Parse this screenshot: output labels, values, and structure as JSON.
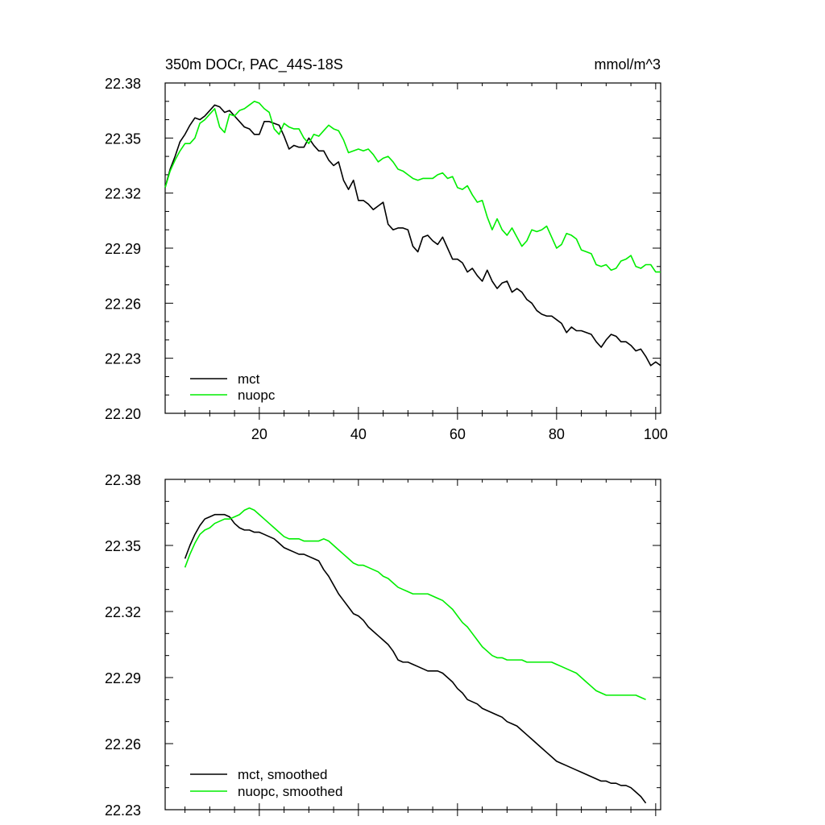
{
  "colors": {
    "mct": "#000000",
    "nuopc": "#00ee00"
  },
  "chart_data": [
    {
      "type": "line",
      "title": "350m DOCr, PAC_44S-18S",
      "units": "mmol/m^3",
      "xlim": [
        1,
        101
      ],
      "ylim": [
        22.2,
        22.38
      ],
      "xticks": [
        20,
        40,
        60,
        80,
        100
      ],
      "xtick_labels": [
        "20",
        "40",
        "60",
        "80",
        "100"
      ],
      "yticks": [
        22.2,
        22.23,
        22.26,
        22.29,
        22.32,
        22.35,
        22.38
      ],
      "ytick_labels": [
        "22.20",
        "22.23",
        "22.26",
        "22.29",
        "22.32",
        "22.35",
        "22.38"
      ],
      "legend_position": "bottom-left",
      "series": [
        {
          "name": "mct",
          "color_key": "mct",
          "x": [
            1,
            2,
            3,
            4,
            5,
            6,
            7,
            8,
            9,
            10,
            11,
            12,
            13,
            14,
            15,
            16,
            17,
            18,
            19,
            20,
            21,
            22,
            23,
            24,
            25,
            26,
            27,
            28,
            29,
            30,
            31,
            32,
            33,
            34,
            35,
            36,
            37,
            38,
            39,
            40,
            41,
            42,
            43,
            44,
            45,
            46,
            47,
            48,
            49,
            50,
            51,
            52,
            53,
            54,
            55,
            56,
            57,
            58,
            59,
            60,
            61,
            62,
            63,
            64,
            65,
            66,
            67,
            68,
            69,
            70,
            71,
            72,
            73,
            74,
            75,
            76,
            77,
            78,
            79,
            80,
            81,
            82,
            83,
            84,
            85,
            86,
            87,
            88,
            89,
            90,
            91,
            92,
            93,
            94,
            95,
            96,
            97,
            98,
            99,
            100,
            101
          ],
          "values": [
            22.323,
            22.333,
            22.34,
            22.348,
            22.352,
            22.357,
            22.361,
            22.36,
            22.362,
            22.365,
            22.368,
            22.367,
            22.364,
            22.365,
            22.362,
            22.359,
            22.356,
            22.355,
            22.352,
            22.352,
            22.359,
            22.359,
            22.358,
            22.357,
            22.351,
            22.344,
            22.346,
            22.345,
            22.345,
            22.35,
            22.346,
            22.343,
            22.343,
            22.338,
            22.335,
            22.337,
            22.327,
            22.322,
            22.327,
            22.316,
            22.316,
            22.314,
            22.311,
            22.313,
            22.315,
            22.303,
            22.3,
            22.301,
            22.301,
            22.3,
            22.291,
            22.288,
            22.296,
            22.297,
            22.294,
            22.292,
            22.296,
            22.29,
            22.284,
            22.284,
            22.282,
            22.277,
            22.279,
            22.275,
            22.272,
            22.278,
            22.272,
            22.268,
            22.271,
            22.272,
            22.266,
            22.268,
            22.266,
            22.262,
            22.26,
            22.256,
            22.254,
            22.253,
            22.253,
            22.251,
            22.249,
            22.244,
            22.247,
            22.245,
            22.245,
            22.244,
            22.243,
            22.239,
            22.236,
            22.24,
            22.243,
            22.242,
            22.239,
            22.239,
            22.237,
            22.234,
            22.235,
            22.231,
            22.226,
            22.228,
            22.226
          ]
        },
        {
          "name": "nuopc",
          "color_key": "nuopc",
          "x": [
            1,
            2,
            3,
            4,
            5,
            6,
            7,
            8,
            9,
            10,
            11,
            12,
            13,
            14,
            15,
            16,
            17,
            18,
            19,
            20,
            21,
            22,
            23,
            24,
            25,
            26,
            27,
            28,
            29,
            30,
            31,
            32,
            33,
            34,
            35,
            36,
            37,
            38,
            39,
            40,
            41,
            42,
            43,
            44,
            45,
            46,
            47,
            48,
            49,
            50,
            51,
            52,
            53,
            54,
            55,
            56,
            57,
            58,
            59,
            60,
            61,
            62,
            63,
            64,
            65,
            66,
            67,
            68,
            69,
            70,
            71,
            72,
            73,
            74,
            75,
            76,
            77,
            78,
            79,
            80,
            81,
            82,
            83,
            84,
            85,
            86,
            87,
            88,
            89,
            90,
            91,
            92,
            93,
            94,
            95,
            96,
            97,
            98,
            99,
            100,
            101
          ],
          "values": [
            22.323,
            22.332,
            22.338,
            22.343,
            22.347,
            22.347,
            22.35,
            22.358,
            22.36,
            22.363,
            22.366,
            22.356,
            22.353,
            22.363,
            22.362,
            22.365,
            22.366,
            22.368,
            22.37,
            22.369,
            22.366,
            22.364,
            22.355,
            22.352,
            22.358,
            22.356,
            22.355,
            22.355,
            22.35,
            22.347,
            22.352,
            22.351,
            22.354,
            22.357,
            22.355,
            22.354,
            22.349,
            22.342,
            22.343,
            22.344,
            22.343,
            22.344,
            22.341,
            22.337,
            22.339,
            22.34,
            22.337,
            22.333,
            22.332,
            22.33,
            22.328,
            22.327,
            22.328,
            22.328,
            22.328,
            22.33,
            22.331,
            22.328,
            22.329,
            22.323,
            22.322,
            22.324,
            22.319,
            22.315,
            22.316,
            22.307,
            22.3,
            22.306,
            22.3,
            22.297,
            22.301,
            22.296,
            22.291,
            22.294,
            22.3,
            22.299,
            22.3,
            22.302,
            22.296,
            22.29,
            22.292,
            22.298,
            22.297,
            22.295,
            22.289,
            22.288,
            22.287,
            22.281,
            22.28,
            22.281,
            22.278,
            22.279,
            22.283,
            22.284,
            22.286,
            22.28,
            22.279,
            22.281,
            22.281,
            22.277,
            22.277
          ]
        }
      ]
    },
    {
      "type": "line",
      "title": "",
      "xlim": [
        1,
        101
      ],
      "ylim": [
        22.23,
        22.38
      ],
      "xticks": [
        20,
        40,
        60,
        80,
        100
      ],
      "yticks": [
        22.23,
        22.26,
        22.29,
        22.32,
        22.35,
        22.38
      ],
      "ytick_labels": [
        "22.23",
        "22.26",
        "22.29",
        "22.32",
        "22.35",
        "22.38"
      ],
      "legend_position": "bottom-left",
      "series": [
        {
          "name": "mct, smoothed",
          "color_key": "mct",
          "x": [
            5,
            6,
            7,
            8,
            9,
            10,
            11,
            12,
            13,
            14,
            15,
            16,
            17,
            18,
            19,
            20,
            21,
            22,
            23,
            24,
            25,
            26,
            27,
            28,
            29,
            30,
            31,
            32,
            33,
            34,
            35,
            36,
            37,
            38,
            39,
            40,
            41,
            42,
            43,
            44,
            45,
            46,
            47,
            48,
            49,
            50,
            51,
            52,
            53,
            54,
            55,
            56,
            57,
            58,
            59,
            60,
            61,
            62,
            63,
            64,
            65,
            66,
            67,
            68,
            69,
            70,
            71,
            72,
            73,
            74,
            75,
            76,
            77,
            78,
            79,
            80,
            81,
            82,
            83,
            84,
            85,
            86,
            87,
            88,
            89,
            90,
            91,
            92,
            93,
            94,
            95,
            96,
            97,
            98
          ],
          "values": [
            22.344,
            22.35,
            22.355,
            22.359,
            22.362,
            22.363,
            22.364,
            22.364,
            22.364,
            22.363,
            22.36,
            22.358,
            22.357,
            22.357,
            22.356,
            22.356,
            22.355,
            22.354,
            22.353,
            22.351,
            22.349,
            22.348,
            22.347,
            22.346,
            22.346,
            22.345,
            22.344,
            22.343,
            22.339,
            22.336,
            22.332,
            22.328,
            22.325,
            22.322,
            22.319,
            22.318,
            22.316,
            22.313,
            22.311,
            22.309,
            22.307,
            22.305,
            22.302,
            22.298,
            22.297,
            22.297,
            22.296,
            22.295,
            22.294,
            22.293,
            22.293,
            22.293,
            22.292,
            22.29,
            22.288,
            22.285,
            22.283,
            22.28,
            22.279,
            22.278,
            22.276,
            22.275,
            22.274,
            22.273,
            22.272,
            22.27,
            22.269,
            22.268,
            22.266,
            22.264,
            22.262,
            22.26,
            22.258,
            22.256,
            22.254,
            22.252,
            22.251,
            22.25,
            22.249,
            22.248,
            22.247,
            22.246,
            22.245,
            22.244,
            22.243,
            22.243,
            22.242,
            22.242,
            22.241,
            22.241,
            22.24,
            22.238,
            22.236,
            22.233
          ]
        },
        {
          "name": "nuopc, smoothed",
          "color_key": "nuopc",
          "x": [
            5,
            6,
            7,
            8,
            9,
            10,
            11,
            12,
            13,
            14,
            15,
            16,
            17,
            18,
            19,
            20,
            21,
            22,
            23,
            24,
            25,
            26,
            27,
            28,
            29,
            30,
            31,
            32,
            33,
            34,
            35,
            36,
            37,
            38,
            39,
            40,
            41,
            42,
            43,
            44,
            45,
            46,
            47,
            48,
            49,
            50,
            51,
            52,
            53,
            54,
            55,
            56,
            57,
            58,
            59,
            60,
            61,
            62,
            63,
            64,
            65,
            66,
            67,
            68,
            69,
            70,
            71,
            72,
            73,
            74,
            75,
            76,
            77,
            78,
            79,
            80,
            81,
            82,
            83,
            84,
            85,
            86,
            87,
            88,
            89,
            90,
            91,
            92,
            93,
            94,
            95,
            96,
            97,
            98
          ],
          "values": [
            22.34,
            22.346,
            22.351,
            22.355,
            22.357,
            22.358,
            22.36,
            22.361,
            22.362,
            22.362,
            22.363,
            22.364,
            22.366,
            22.367,
            22.366,
            22.364,
            22.362,
            22.36,
            22.358,
            22.356,
            22.354,
            22.353,
            22.353,
            22.353,
            22.352,
            22.352,
            22.352,
            22.352,
            22.353,
            22.352,
            22.35,
            22.348,
            22.346,
            22.344,
            22.342,
            22.341,
            22.341,
            22.34,
            22.339,
            22.338,
            22.336,
            22.335,
            22.333,
            22.331,
            22.33,
            22.329,
            22.328,
            22.328,
            22.328,
            22.328,
            22.327,
            22.326,
            22.325,
            22.323,
            22.321,
            22.318,
            22.315,
            22.313,
            22.31,
            22.307,
            22.304,
            22.302,
            22.3,
            22.299,
            22.299,
            22.298,
            22.298,
            22.298,
            22.298,
            22.297,
            22.297,
            22.297,
            22.297,
            22.297,
            22.297,
            22.296,
            22.295,
            22.294,
            22.293,
            22.292,
            22.29,
            22.288,
            22.286,
            22.284,
            22.283,
            22.282,
            22.282,
            22.282,
            22.282,
            22.282,
            22.282,
            22.282,
            22.281,
            22.28
          ]
        }
      ]
    }
  ]
}
